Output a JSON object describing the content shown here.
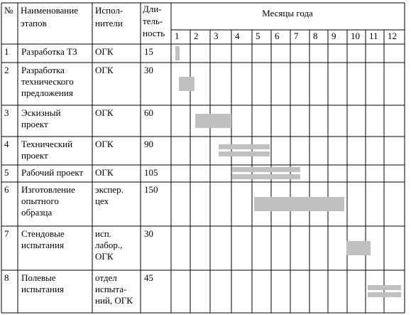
{
  "header": {
    "num": "№",
    "name": [
      "Наименование",
      "этапов"
    ],
    "executors": [
      "Испол-",
      "нители"
    ],
    "duration": [
      "Дли-",
      "тель-",
      "ность"
    ],
    "months_title": "Месяцы года",
    "months": [
      "1",
      "2",
      "3",
      "4",
      "5",
      "6",
      "7",
      "8",
      "9",
      "10",
      "11",
      "12"
    ]
  },
  "rows": [
    {
      "num": "1",
      "name": [
        "Разработка ТЗ"
      ],
      "executors": [
        "ОГК"
      ],
      "duration": "15"
    },
    {
      "num": "2",
      "name": [
        "Разработка",
        "технического",
        "предложения"
      ],
      "executors": [
        "ОГК"
      ],
      "duration": "30"
    },
    {
      "num": "3",
      "name": [
        "Эскизный",
        "проект"
      ],
      "executors": [
        "ОГК"
      ],
      "duration": "60"
    },
    {
      "num": "4",
      "name": [
        "Технический",
        "проект"
      ],
      "executors": [
        "ОГК"
      ],
      "duration": "90"
    },
    {
      "num": "5",
      "name": [
        "Рабочий проект"
      ],
      "executors": [
        "ОГК"
      ],
      "duration": "105"
    },
    {
      "num": "6",
      "name": [
        "Изготовление",
        "опытного",
        "образца"
      ],
      "executors": [
        "экспер.",
        "цех"
      ],
      "duration": "150"
    },
    {
      "num": "7",
      "name": [
        "Стендовые",
        "испытания"
      ],
      "executors": [
        "исп.",
        "лабор.,",
        "ОГК"
      ],
      "duration": "30"
    },
    {
      "num": "8",
      "name": [
        "Полевые",
        "испытания"
      ],
      "executors": [
        "отдел",
        "испыта-",
        "ний, ОГК"
      ],
      "duration": "45"
    }
  ]
}
